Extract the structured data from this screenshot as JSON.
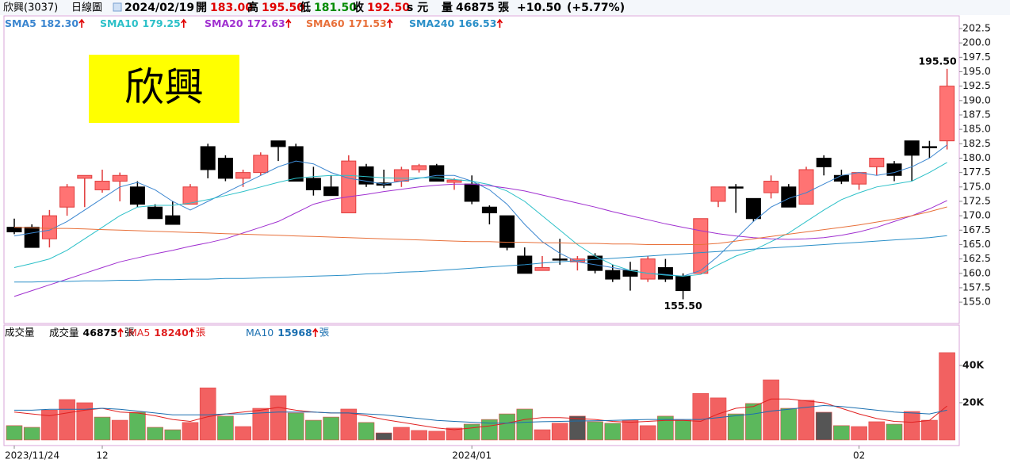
{
  "header": {
    "name": "欣興(3037)",
    "period": "日線圖",
    "date": "2024/02/19",
    "open_label": "開",
    "open": "183.00",
    "high_label": "高",
    "high": "195.50",
    "low_label": "低",
    "low": "181.50",
    "close_label": "收",
    "close": "192.50",
    "unit": "s 元",
    "volume_label": "量",
    "volume": "46875",
    "volume_unit": "張",
    "change": "+10.50",
    "change_pct": "(+5.77%)"
  },
  "chart_data": [
    {
      "type": "candlestick",
      "annotation": "欣興",
      "high_label": "195.50",
      "low_label": "155.50",
      "up_color": "#ff7373",
      "up_edge": "#e03c3c",
      "down_color": "#000000",
      "open": [
        168,
        168,
        166,
        171.5,
        176.5,
        174.5,
        176,
        175,
        171.5,
        170,
        172,
        182,
        180,
        176.5,
        177.5,
        183,
        182,
        176.5,
        175,
        170.5,
        178.5,
        175.7,
        176,
        178,
        178.7,
        175.8,
        175.5,
        171.5,
        170,
        163,
        160.5,
        162.5,
        162,
        163,
        160.5,
        160.5,
        159,
        161,
        159.5,
        160,
        172.5,
        175,
        173,
        174,
        175,
        172,
        180,
        177,
        175.5,
        178.5,
        179,
        183,
        182,
        183
      ],
      "high": [
        169.5,
        168.5,
        171,
        175.5,
        177,
        178,
        177.5,
        176,
        172,
        172.5,
        175.5,
        182.5,
        180.5,
        178,
        181,
        183,
        182.5,
        178.5,
        177,
        180.5,
        179,
        178,
        178.5,
        179,
        179,
        176.5,
        177,
        171.8,
        170,
        164.5,
        163,
        166,
        163,
        163.5,
        161.5,
        162,
        163,
        162.5,
        160,
        169.5,
        175,
        175.5,
        173,
        177,
        175.5,
        178.5,
        180.5,
        178,
        177.5,
        180,
        179.5,
        183,
        183,
        195.5
      ],
      "low": [
        166.8,
        164.5,
        164.5,
        170,
        171.5,
        174,
        172.5,
        171.5,
        169.5,
        168.5,
        172,
        176.5,
        176,
        175,
        177,
        179.5,
        176,
        173.5,
        173.5,
        170.5,
        175,
        174.8,
        175,
        177.5,
        176,
        174.5,
        172,
        168.5,
        164,
        160,
        160.5,
        161.5,
        160.5,
        160,
        158.5,
        157,
        158.5,
        158.5,
        155.5,
        160,
        171.5,
        170.5,
        169,
        173,
        171.5,
        172,
        177,
        175.5,
        174.5,
        177,
        176,
        176,
        180,
        181.5
      ],
      "close": [
        167.2,
        164.5,
        170,
        175,
        177,
        176,
        177,
        172,
        169.5,
        168.5,
        175,
        178,
        176.5,
        177.5,
        180.5,
        182,
        176,
        174.5,
        173.5,
        179.5,
        175.5,
        175.3,
        178,
        178.7,
        176,
        176.2,
        172.5,
        170.5,
        164.5,
        160,
        161,
        162.5,
        162.5,
        160.5,
        159,
        159.5,
        162.5,
        159,
        157,
        169.5,
        175,
        174.8,
        169.5,
        176,
        171.5,
        178,
        178.5,
        176,
        177.5,
        180,
        177,
        180.5,
        182,
        192.5
      ],
      "ylim": [
        151.3,
        204.7
      ],
      "yticks": [
        {
          "value": 155,
          "label": "155.0"
        },
        {
          "value": 157.5,
          "label": "157.5"
        },
        {
          "value": 160,
          "label": "160.0"
        },
        {
          "value": 162.5,
          "label": "162.5"
        },
        {
          "value": 165,
          "label": "165.0"
        },
        {
          "value": 167.5,
          "label": "167.5"
        },
        {
          "value": 170,
          "label": "170.0"
        },
        {
          "value": 172.5,
          "label": "172.5"
        },
        {
          "value": 175,
          "label": "175.0"
        },
        {
          "value": 177.5,
          "label": "177.5"
        },
        {
          "value": 180,
          "label": "180.0"
        },
        {
          "value": 182.5,
          "label": "182.5"
        },
        {
          "value": 185,
          "label": "185.0"
        },
        {
          "value": 187.5,
          "label": "187.5"
        },
        {
          "value": 190,
          "label": "190.0"
        },
        {
          "value": 192.5,
          "label": "192.5"
        },
        {
          "value": 195,
          "label": "195.0"
        },
        {
          "value": 197.5,
          "label": "197.5"
        },
        {
          "value": 200,
          "label": "200.0"
        },
        {
          "value": 202.5,
          "label": "202.5"
        }
      ],
      "series": [
        {
          "name": "SMA5",
          "value_label": "182.30",
          "color": "#3b86d0",
          "values": [
            166.5,
            167,
            167.5,
            169,
            171,
            173,
            175,
            175.8,
            174.5,
            172.5,
            171,
            172.5,
            174,
            175.5,
            177,
            178.5,
            179.5,
            179,
            177.5,
            176.5,
            176,
            175.5,
            176,
            176.5,
            177,
            177,
            176,
            174.5,
            172,
            168.5,
            165.5,
            163.5,
            162,
            161.5,
            161,
            160.5,
            160,
            159.8,
            159.5,
            160.5,
            163,
            166,
            169,
            171.5,
            173,
            174,
            175.5,
            177,
            177.5,
            177,
            177.5,
            178.5,
            180,
            182.3
          ]
        },
        {
          "name": "SMA10",
          "value_label": "179.25",
          "color": "#2cc0c8",
          "values": [
            161,
            161.7,
            162.5,
            164,
            166,
            168,
            170,
            171.5,
            171.8,
            171.8,
            172.2,
            172.8,
            173.5,
            174.2,
            175,
            175.8,
            176.5,
            176.8,
            177,
            177,
            176.8,
            176.6,
            176.5,
            176.6,
            176.6,
            176.3,
            176,
            175.4,
            174.3,
            172.5,
            170,
            167.5,
            165,
            163,
            161.5,
            160.5,
            160,
            159.7,
            159.5,
            159.8,
            161.5,
            163,
            164,
            165.5,
            167,
            169,
            171,
            172.8,
            174,
            175,
            175.5,
            176,
            177.5,
            179.25
          ]
        },
        {
          "name": "SMA20",
          "value_label": "172.63",
          "color": "#a030d0",
          "values": [
            156,
            157,
            158,
            159,
            160,
            161,
            162,
            162.7,
            163.4,
            164,
            164.7,
            165.3,
            166,
            167,
            168,
            169,
            170.5,
            172,
            172.8,
            173.3,
            173.7,
            174.2,
            174.6,
            175,
            175.3,
            175.5,
            175.5,
            175.2,
            174.8,
            174.3,
            173.6,
            172.9,
            172.2,
            171.5,
            170.7,
            170,
            169.3,
            168.6,
            168,
            167.4,
            166.9,
            166.5,
            166.2,
            166,
            165.9,
            166,
            166.2,
            166.6,
            167.2,
            168,
            169,
            170,
            171.2,
            172.63
          ]
        },
        {
          "name": "SMA60",
          "value_label": "171.53",
          "color": "#e8703a",
          "values": [
            168,
            167.9,
            167.8,
            167.8,
            167.7,
            167.6,
            167.5,
            167.4,
            167.3,
            167.2,
            167.1,
            167,
            166.9,
            166.8,
            166.7,
            166.6,
            166.5,
            166.4,
            166.3,
            166.2,
            166.1,
            166,
            165.9,
            165.8,
            165.7,
            165.6,
            165.5,
            165.5,
            165.4,
            165.4,
            165.3,
            165.3,
            165.2,
            165.2,
            165.1,
            165.1,
            165,
            165,
            165,
            165,
            165.2,
            165.6,
            166,
            166.4,
            166.8,
            167.2,
            167.6,
            168,
            168.4,
            168.9,
            169.4,
            170,
            170.7,
            171.53
          ]
        },
        {
          "name": "SMA240",
          "value_label": "166.53",
          "color": "#2a8fc8",
          "values": [
            158.5,
            158.5,
            158.6,
            158.6,
            158.7,
            158.7,
            158.8,
            158.8,
            158.9,
            158.9,
            159,
            159,
            159.1,
            159.1,
            159.2,
            159.3,
            159.4,
            159.5,
            159.6,
            159.7,
            159.9,
            160,
            160.2,
            160.3,
            160.5,
            160.7,
            160.9,
            161.1,
            161.3,
            161.5,
            161.8,
            162,
            162.2,
            162.4,
            162.6,
            162.8,
            163,
            163.2,
            163.4,
            163.6,
            163.8,
            164,
            164.2,
            164.4,
            164.6,
            164.8,
            165,
            165.2,
            165.4,
            165.6,
            165.8,
            166,
            166.2,
            166.53
          ]
        }
      ]
    },
    {
      "type": "bar",
      "title": "成交量",
      "legend_title": "成交量",
      "unit": "張",
      "categories": [
        "2023/11/24",
        null,
        null,
        null,
        null,
        "12",
        null,
        null,
        null,
        null,
        null,
        null,
        null,
        null,
        null,
        null,
        null,
        null,
        null,
        null,
        null,
        null,
        null,
        null,
        null,
        null,
        "2024/01",
        null,
        null,
        null,
        null,
        null,
        null,
        null,
        null,
        null,
        null,
        null,
        null,
        null,
        null,
        null,
        null,
        null,
        null,
        null,
        null,
        null,
        "02",
        null,
        null,
        null,
        null,
        null
      ],
      "values": [
        7700,
        6800,
        16000,
        21700,
        20000,
        12300,
        10600,
        14900,
        6800,
        5500,
        9400,
        28000,
        12800,
        7200,
        17000,
        23800,
        14500,
        10600,
        12300,
        16600,
        9400,
        3800,
        6800,
        5100,
        4700,
        6400,
        8500,
        11000,
        14000,
        16600,
        5500,
        9000,
        12800,
        9800,
        9000,
        10600,
        7700,
        12800,
        10600,
        25000,
        22600,
        14000,
        19600,
        32300,
        17000,
        21300,
        14900,
        7700,
        7200,
        9800,
        8500,
        15300,
        10600,
        46875
      ],
      "colors": [
        "#5cb85c",
        "#5cb85c",
        "#f26161",
        "#f26161",
        "#f26161",
        "#5cb85c",
        "#f26161",
        "#5cb85c",
        "#5cb85c",
        "#5cb85c",
        "#f26161",
        "#f26161",
        "#5cb85c",
        "#f26161",
        "#f26161",
        "#f26161",
        "#5cb85c",
        "#5cb85c",
        "#5cb85c",
        "#f26161",
        "#5cb85c",
        "#555555",
        "#f26161",
        "#f26161",
        "#f26161",
        "#f26161",
        "#5cb85c",
        "#5cb85c",
        "#5cb85c",
        "#5cb85c",
        "#f26161",
        "#f26161",
        "#555555",
        "#5cb85c",
        "#5cb85c",
        "#f26161",
        "#f26161",
        "#5cb85c",
        "#5cb85c",
        "#f26161",
        "#f26161",
        "#5cb85c",
        "#5cb85c",
        "#f26161",
        "#5cb85c",
        "#f26161",
        "#555555",
        "#5cb85c",
        "#f26161",
        "#f26161",
        "#5cb85c",
        "#f26161",
        "#f26161",
        "#f26161"
      ],
      "ylim": [
        -3000,
        61700
      ],
      "yticks": [
        {
          "value": 20000,
          "label": "20K"
        },
        {
          "value": 40000,
          "label": "40K"
        }
      ],
      "series": [
        {
          "name": "MA5",
          "color": "#e02020",
          "values": [
            15000,
            14000,
            13000,
            14500,
            16000,
            17000,
            15000,
            14500,
            13000,
            11000,
            10000,
            12500,
            14000,
            15000,
            16000,
            17500,
            16000,
            15000,
            14500,
            14500,
            13000,
            11000,
            9500,
            8000,
            6500,
            5500,
            6500,
            7500,
            9000,
            11000,
            12000,
            12000,
            11500,
            11000,
            10000,
            9500,
            10000,
            10500,
            10500,
            10000,
            14000,
            17000,
            18000,
            22000,
            22000,
            21000,
            20000,
            17000,
            14000,
            11500,
            10000,
            9500,
            10500,
            18240
          ]
        },
        {
          "name": "MA10",
          "color": "#1a6fb0",
          "values": [
            16000,
            16000,
            16500,
            16500,
            16500,
            17000,
            16500,
            15500,
            14500,
            13500,
            13500,
            13500,
            14000,
            14000,
            14500,
            15000,
            15000,
            15000,
            14500,
            14500,
            14000,
            13500,
            12500,
            11500,
            10500,
            10000,
            9500,
            9000,
            9000,
            9500,
            9800,
            10000,
            10200,
            10300,
            10500,
            10800,
            11000,
            11000,
            11000,
            11000,
            12000,
            13000,
            14000,
            15500,
            16500,
            17500,
            18500,
            18000,
            17000,
            16000,
            15000,
            14500,
            14000,
            15968
          ]
        }
      ]
    }
  ]
}
